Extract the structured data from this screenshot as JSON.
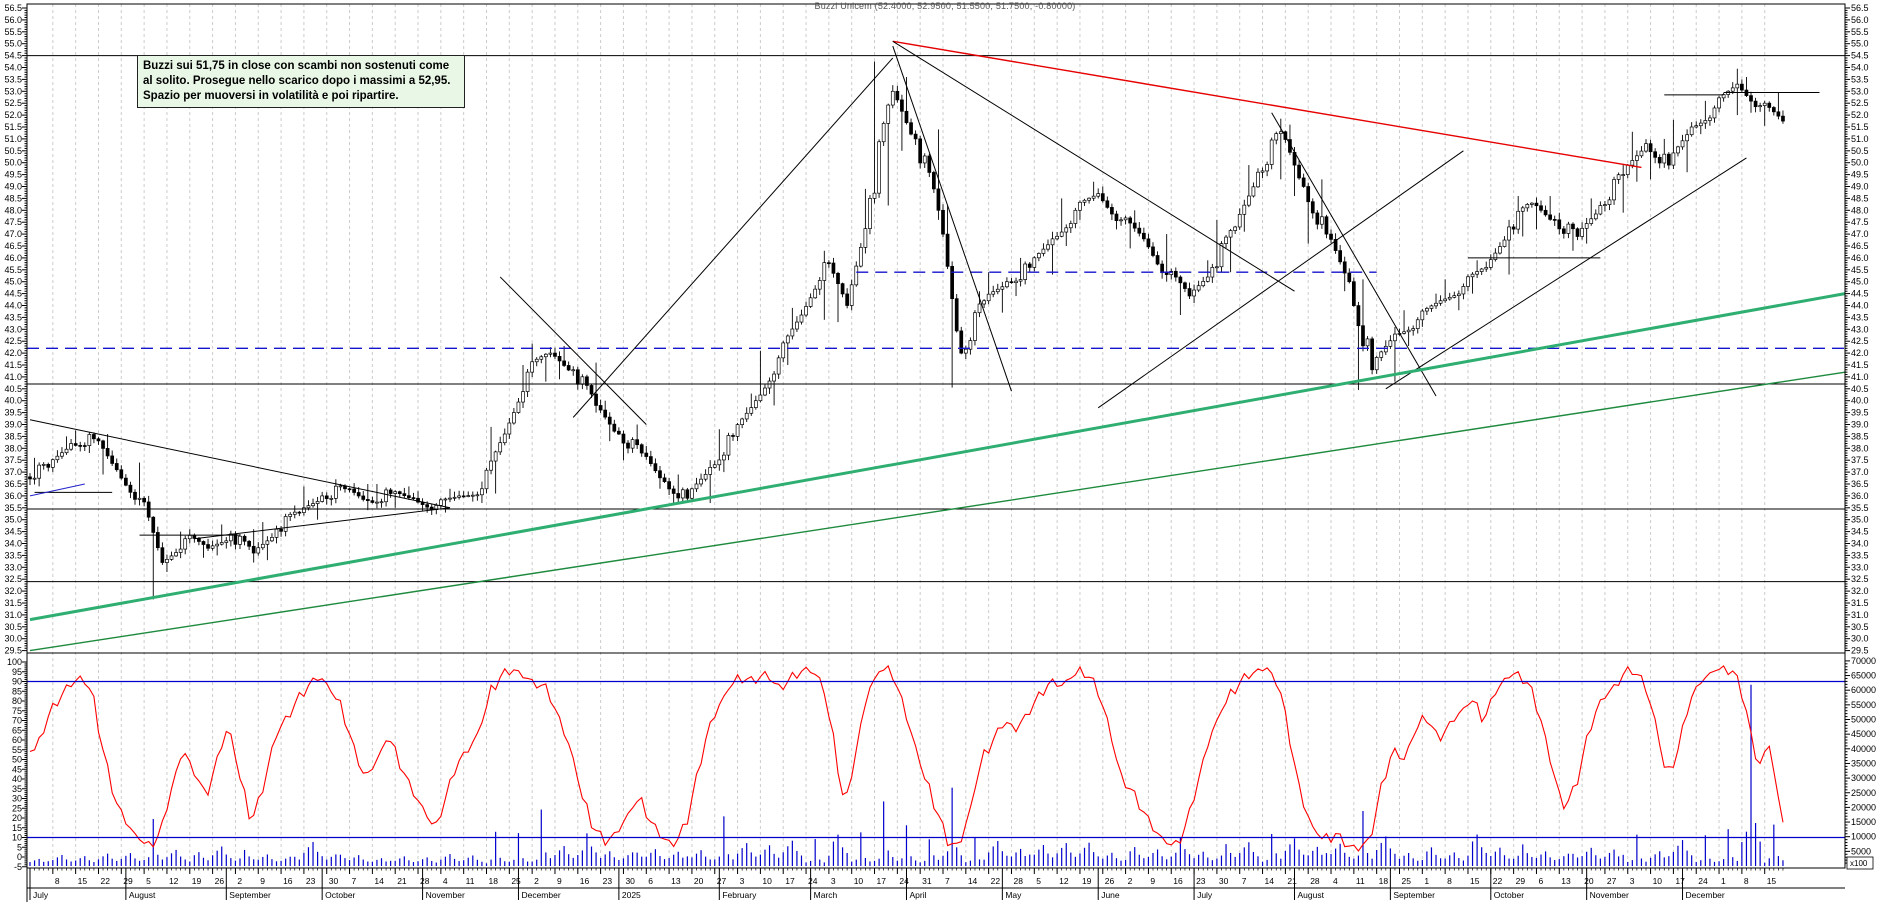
{
  "title": "Buzzi Unicem (52.4000, 52.9500, 51.5500, 51.7500, -0.80000)",
  "annotation": {
    "lines": [
      "Buzzi sui 51,75 in close con scambi non sostenuti come",
      "al solito. Prosegue nello scarico dopo i massimi a 52,95.",
      "Spazio per muoversi in volatilità e poi ripartire."
    ],
    "background": "#e9f7e6"
  },
  "volume_note": "x100",
  "colors": {
    "up_candle": "#ffffff",
    "down_candle": "#000000",
    "oscillator": "#ff0000",
    "volume": "#0000cc",
    "signal_line": "#0000cc",
    "dashed_level": "#1414cc",
    "trend_red": "#e60000",
    "trend_green_thick": "#2fae72",
    "trend_green_thin": "#1d8a3e",
    "grid": "#cccccc"
  },
  "chart_data": {
    "type": "candlestick",
    "instrument": "Buzzi Unicem",
    "last_bar": {
      "open": 52.4,
      "high": 52.95,
      "low": 51.55,
      "close": 51.75,
      "change": -0.8
    },
    "price_axis": {
      "min": 29.5,
      "max": 56.5,
      "step": 0.5,
      "sides": "both"
    },
    "oscillator_axis": {
      "min": -5,
      "max": 100,
      "step": 5,
      "overbought": 90,
      "oversold": 10
    },
    "volume_axis": {
      "min": 5000,
      "max": 70000,
      "step": 5000,
      "unit": "x100"
    },
    "months": [
      {
        "label": "July",
        "d": 0
      },
      {
        "label": "August",
        "d": 21
      },
      {
        "label": "September",
        "d": 43
      },
      {
        "label": "October",
        "d": 64
      },
      {
        "label": "November",
        "d": 86
      },
      {
        "label": "December",
        "d": 107
      },
      {
        "label": "2025",
        "d": 129
      },
      {
        "label": "February",
        "d": 151
      },
      {
        "label": "March",
        "d": 171
      },
      {
        "label": "April",
        "d": 192
      },
      {
        "label": "May",
        "d": 213
      },
      {
        "label": "June",
        "d": 234
      },
      {
        "label": "July",
        "d": 255
      },
      {
        "label": "August",
        "d": 277
      },
      {
        "label": "September",
        "d": 298
      },
      {
        "label": "October",
        "d": 320
      },
      {
        "label": "November",
        "d": 341
      },
      {
        "label": "December",
        "d": 362
      }
    ],
    "week_labels": [
      "8",
      "15",
      "22",
      "29",
      "5",
      "12",
      "19",
      "26",
      "2",
      "9",
      "16",
      "23",
      "30",
      "7",
      "14",
      "21",
      "28",
      "4",
      "11",
      "18",
      "25",
      "2",
      "9",
      "16",
      "23",
      "30",
      "6",
      "13",
      "20",
      "27",
      "3",
      "10",
      "17",
      "24",
      "3",
      "10",
      "17",
      "24",
      "31",
      "7",
      "14",
      "22",
      "28",
      "5",
      "12",
      "19",
      "26",
      "2",
      "9",
      "16",
      "23",
      "30",
      "7",
      "14",
      "21",
      "28",
      "4",
      "11",
      "18",
      "25",
      "1",
      "8",
      "15",
      "22",
      "29",
      "6",
      "13",
      "20",
      "27",
      "3",
      "10",
      "17",
      "24",
      "1",
      "8",
      "15"
    ],
    "weekly_ohlc_fields": [
      "week",
      "open",
      "high",
      "low",
      "close",
      "volume",
      "stoch_a",
      "stoch_b"
    ],
    "weekly": [
      [
        "Jul 1",
        36.8,
        37.6,
        36.4,
        37.2,
        3000,
        55,
        70
      ],
      [
        "Jul 8",
        37.2,
        38.5,
        37.0,
        38.2,
        3500,
        80,
        88
      ],
      [
        "Jul 15",
        38.2,
        38.75,
        37.8,
        38.4,
        4000,
        92,
        85
      ],
      [
        "Jul 22",
        38.4,
        38.6,
        36.9,
        37.1,
        3800,
        55,
        30
      ],
      [
        "Jul 29",
        37.1,
        37.4,
        35.6,
        35.9,
        5000,
        18,
        10
      ],
      [
        "Aug 5",
        35.9,
        36.0,
        31.65,
        33.2,
        14000,
        5,
        12
      ],
      [
        "Aug 12",
        33.2,
        34.5,
        32.8,
        34.2,
        6000,
        35,
        55
      ],
      [
        "Aug 19",
        34.2,
        34.6,
        33.4,
        33.8,
        4000,
        45,
        30
      ],
      [
        "Aug 26",
        33.8,
        34.8,
        33.5,
        34.4,
        7000,
        50,
        68
      ],
      [
        "Sep 2",
        34.4,
        34.6,
        33.2,
        33.6,
        4500,
        40,
        18
      ],
      [
        "Sep 9",
        33.6,
        34.9,
        33.3,
        34.6,
        4000,
        35,
        60
      ],
      [
        "Sep 16",
        34.6,
        35.6,
        34.3,
        35.3,
        4200,
        72,
        80
      ],
      [
        "Sep 23",
        35.3,
        36.4,
        35.0,
        36.0,
        8000,
        88,
        93
      ],
      [
        "Sep 30",
        36.0,
        36.7,
        35.6,
        36.3,
        5000,
        85,
        75
      ],
      [
        "Oct 7",
        36.3,
        36.5,
        35.4,
        35.8,
        3500,
        55,
        40
      ],
      [
        "Oct 14",
        35.8,
        36.5,
        35.5,
        36.1,
        3200,
        50,
        62
      ],
      [
        "Oct 21",
        36.1,
        36.4,
        35.5,
        35.9,
        3000,
        48,
        35
      ],
      [
        "Oct 28",
        35.9,
        36.2,
        35.2,
        35.6,
        3400,
        25,
        15
      ],
      [
        "Nov 4",
        35.6,
        36.3,
        35.3,
        36.0,
        3600,
        30,
        48
      ],
      [
        "Nov 11",
        36.0,
        36.6,
        35.7,
        36.3,
        4000,
        55,
        65
      ],
      [
        "Nov 18",
        36.3,
        38.9,
        36.1,
        38.6,
        10000,
        85,
        94
      ],
      [
        "Nov 25",
        38.6,
        41.5,
        38.4,
        41.2,
        12000,
        96,
        92
      ],
      [
        "Dec 2",
        41.2,
        42.4,
        40.8,
        42.0,
        16000,
        90,
        85
      ],
      [
        "Dec 9",
        42.0,
        42.3,
        40.9,
        41.3,
        7000,
        70,
        55
      ],
      [
        "Dec 16",
        41.3,
        41.6,
        39.5,
        39.8,
        9000,
        30,
        15
      ],
      [
        "Dec 23",
        39.8,
        40.0,
        38.3,
        38.6,
        5000,
        8,
        12
      ],
      [
        "Dec 30",
        38.6,
        39.0,
        37.5,
        37.8,
        6000,
        22,
        30
      ],
      [
        "Jan 6",
        37.8,
        38.1,
        36.3,
        36.6,
        5500,
        18,
        10
      ],
      [
        "Jan 13",
        36.6,
        36.9,
        35.6,
        35.9,
        6000,
        6,
        15
      ],
      [
        "Jan 20",
        35.9,
        37.5,
        35.7,
        37.2,
        5000,
        40,
        65
      ],
      [
        "Jan 27",
        37.2,
        38.8,
        37.0,
        38.5,
        20000,
        78,
        88
      ],
      [
        "Feb 3",
        38.5,
        40.3,
        38.3,
        40.0,
        7000,
        92,
        90
      ],
      [
        "Feb 10",
        40.0,
        42.1,
        39.8,
        41.8,
        8000,
        94,
        88
      ],
      [
        "Feb 17",
        41.8,
        43.9,
        41.5,
        43.6,
        7500,
        90,
        95
      ],
      [
        "Feb 24",
        43.6,
        46.3,
        43.4,
        45.8,
        10000,
        96,
        90
      ],
      [
        "Mar 3",
        45.8,
        46.0,
        43.3,
        44.0,
        9000,
        60,
        25
      ],
      [
        "Mar 10",
        44.0,
        48.9,
        43.8,
        48.5,
        12000,
        55,
        85
      ],
      [
        "Mar 17",
        48.5,
        54.25,
        48.2,
        53.0,
        18000,
        95,
        97
      ],
      [
        "Mar 24",
        53.0,
        53.6,
        50.5,
        51.0,
        14000,
        80,
        60
      ],
      [
        "Mar 31",
        51.0,
        51.4,
        47.6,
        48.0,
        12000,
        40,
        25
      ],
      [
        "Apr 7",
        48.0,
        48.2,
        40.55,
        42.0,
        26000,
        8,
        5
      ],
      [
        "Apr 14",
        42.0,
        44.6,
        41.8,
        44.2,
        12000,
        25,
        50
      ],
      [
        "Apr 21",
        44.2,
        45.4,
        43.7,
        45.0,
        8000,
        60,
        70
      ],
      [
        "Apr 28",
        45.0,
        46.0,
        44.4,
        45.6,
        7000,
        65,
        75
      ],
      [
        "May 5",
        45.6,
        47.1,
        45.3,
        46.8,
        6500,
        82,
        90
      ],
      [
        "May 12",
        46.8,
        48.5,
        46.5,
        48.0,
        9000,
        88,
        93
      ],
      [
        "May 19",
        48.0,
        49.2,
        47.6,
        48.7,
        7000,
        95,
        88
      ],
      [
        "May 26",
        48.7,
        49.0,
        47.2,
        47.6,
        5000,
        70,
        45
      ],
      [
        "Jun 2",
        47.6,
        48.0,
        46.4,
        46.8,
        5500,
        35,
        25
      ],
      [
        "Jun 9",
        46.8,
        47.0,
        45.0,
        45.3,
        6000,
        15,
        8
      ],
      [
        "Jun 16",
        45.3,
        45.6,
        43.6,
        44.4,
        8000,
        5,
        18
      ],
      [
        "Jun 23",
        44.4,
        45.9,
        44.1,
        45.6,
        5000,
        40,
        62
      ],
      [
        "Jun 30",
        45.6,
        47.6,
        45.4,
        47.3,
        6000,
        75,
        85
      ],
      [
        "Jul 7",
        47.3,
        49.9,
        47.1,
        49.6,
        8000,
        92,
        95
      ],
      [
        "Jul 14",
        49.6,
        51.85,
        49.3,
        51.3,
        14000,
        97,
        90
      ],
      [
        "Jul 21",
        51.3,
        51.6,
        48.6,
        49.0,
        9000,
        60,
        30
      ],
      [
        "Jul 28",
        49.0,
        49.3,
        46.6,
        47.0,
        8000,
        15,
        8
      ],
      [
        "Aug 4",
        47.0,
        47.2,
        44.6,
        45.0,
        7000,
        12,
        6
      ],
      [
        "Aug 11",
        45.0,
        45.1,
        40.45,
        41.3,
        22000,
        4,
        10
      ],
      [
        "Aug 18",
        41.3,
        43.1,
        40.8,
        42.8,
        9000,
        35,
        55
      ],
      [
        "Aug 25",
        42.8,
        43.8,
        42.3,
        43.4,
        5000,
        50,
        65
      ],
      [
        "Sep 1",
        43.4,
        44.5,
        43.1,
        44.2,
        5500,
        72,
        60
      ],
      [
        "Sep 8",
        44.2,
        45.1,
        43.8,
        44.8,
        5000,
        68,
        75
      ],
      [
        "Sep 15",
        44.8,
        45.9,
        44.5,
        45.6,
        9000,
        80,
        70
      ],
      [
        "Sep 22",
        45.6,
        47.6,
        45.3,
        47.3,
        6500,
        85,
        92
      ],
      [
        "Sep 29",
        47.3,
        48.6,
        46.9,
        48.3,
        6000,
        95,
        88
      ],
      [
        "Oct 6",
        48.3,
        48.6,
        47.2,
        47.6,
        5000,
        70,
        45
      ],
      [
        "Oct 13",
        47.6,
        47.9,
        46.3,
        46.9,
        5500,
        25,
        35
      ],
      [
        "Oct 20",
        46.9,
        48.5,
        46.6,
        48.2,
        6000,
        60,
        78
      ],
      [
        "Oct 27",
        48.2,
        49.9,
        47.9,
        49.5,
        7000,
        85,
        93
      ],
      [
        "Nov 3",
        49.5,
        51.3,
        49.2,
        50.8,
        10000,
        96,
        90
      ],
      [
        "Nov 10",
        50.8,
        51.0,
        49.3,
        49.9,
        6000,
        70,
        40
      ],
      [
        "Nov 17",
        49.9,
        51.8,
        49.6,
        51.5,
        8000,
        55,
        80
      ],
      [
        "Nov 24",
        51.5,
        52.6,
        51.2,
        52.3,
        12000,
        90,
        95
      ],
      [
        "Dec 1",
        52.3,
        53.95,
        52.0,
        53.3,
        11000,
        97,
        95
      ],
      [
        "Dec 8",
        53.3,
        53.6,
        52.1,
        52.4,
        68000,
        75,
        45
      ],
      [
        "Dec 15",
        52.4,
        52.95,
        51.55,
        51.75,
        12000,
        60,
        20
      ]
    ],
    "levels": [
      {
        "price": 54.5
      },
      {
        "price": 40.7
      },
      {
        "price": 35.45
      },
      {
        "price": 32.4
      },
      {
        "price": 42.2,
        "color": "#1414cc",
        "dash": true
      },
      {
        "price": 45.4,
        "color": "#1414cc",
        "dash": true,
        "d1": 181,
        "d2": 295
      },
      {
        "price": 46.0,
        "d1": 315,
        "d2": 344
      },
      {
        "price": 52.85,
        "d1": 358,
        "d2": 371
      },
      {
        "price": 52.95,
        "d1": 371,
        "d2": 392
      },
      {
        "price": 36.15,
        "d1": 1,
        "d2": 18
      },
      {
        "price": 34.35,
        "d1": 24,
        "d2": 46
      }
    ],
    "trendlines": [
      {
        "d1": 0,
        "p1": 39.2,
        "d2": 92,
        "p2": 35.5
      },
      {
        "d1": 36,
        "p1": 34.2,
        "d2": 92,
        "p2": 35.5
      },
      {
        "d1": 103,
        "p1": 45.2,
        "d2": 135,
        "p2": 39.0
      },
      {
        "d1": 119,
        "p1": 39.3,
        "d2": 189,
        "p2": 54.4
      },
      {
        "d1": 189,
        "p1": 55.1,
        "d2": 353,
        "p2": 49.8,
        "color": "#e60000",
        "w": 1.4
      },
      {
        "d1": 189,
        "p1": 55.1,
        "d2": 277,
        "p2": 44.6
      },
      {
        "d1": 189,
        "p1": 54.9,
        "d2": 215,
        "p2": 40.4
      },
      {
        "d1": 234,
        "p1": 39.7,
        "d2": 314,
        "p2": 50.5
      },
      {
        "d1": 272,
        "p1": 52.1,
        "d2": 308,
        "p2": 40.2
      },
      {
        "d1": 297,
        "p1": 40.5,
        "d2": 376,
        "p2": 50.2
      },
      {
        "d1": 0,
        "p1": 36.0,
        "d2": 12,
        "p2": 36.5,
        "color": "#2222cc"
      },
      {
        "d1": 0,
        "p1": 30.8,
        "d2": 398,
        "p2": 44.5,
        "color": "#2fae72",
        "w": 3
      },
      {
        "d1": 0,
        "p1": 29.5,
        "d2": 398,
        "p2": 41.2,
        "color": "#1d8a3e",
        "w": 1.4
      }
    ],
    "indicator_lines": [
      {
        "value": 90
      },
      {
        "value": 10
      }
    ]
  }
}
